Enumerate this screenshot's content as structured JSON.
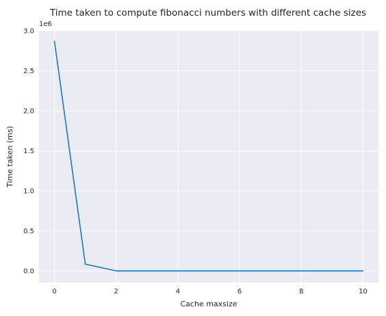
{
  "chart_data": {
    "type": "line",
    "title": "Time taken to compute fibonacci numbers with different cache sizes",
    "xlabel": "Cache maxsize",
    "ylabel": "Time taken (ms)",
    "y_offset_label": "1e6",
    "xlim": [
      -0.5,
      10.5
    ],
    "ylim": [
      -0.144,
      3.0
    ],
    "x_ticks": [
      0,
      2,
      4,
      6,
      8,
      10
    ],
    "x_tick_labels": [
      "0",
      "2",
      "4",
      "6",
      "8",
      "10"
    ],
    "y_ticks": [
      0.0,
      0.5,
      1.0,
      1.5,
      2.0,
      2.5,
      3.0
    ],
    "y_tick_labels": [
      "0.0",
      "0.5",
      "1.0",
      "1.5",
      "2.0",
      "2.5",
      "3.0"
    ],
    "grid": true,
    "background_color": "#eaeaf2",
    "series": [
      {
        "color": "#1f77b4",
        "x": [
          0,
          1,
          2,
          3,
          4,
          5,
          6,
          7,
          8,
          9,
          10
        ],
        "y": [
          2.87,
          0.085,
          0.001,
          0.001,
          0.001,
          0.001,
          0.001,
          0.001,
          0.001,
          0.001,
          0.001
        ]
      }
    ]
  }
}
